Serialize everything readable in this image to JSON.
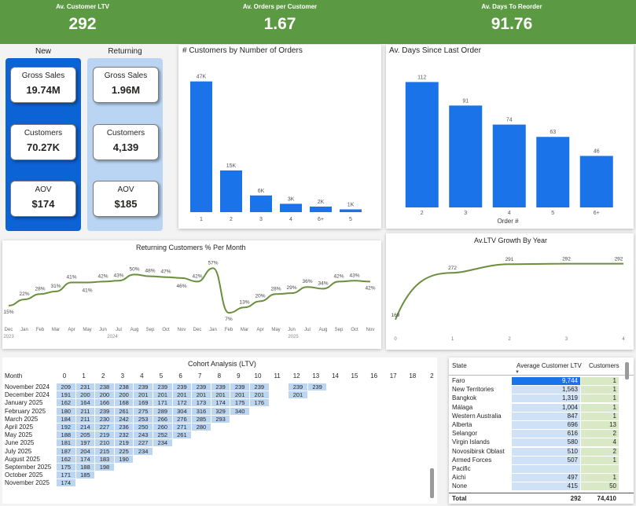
{
  "kpis": [
    {
      "label": "Av. Customer LTV",
      "value": "292"
    },
    {
      "label": "Av. Orders per Customer",
      "value": "1.67"
    },
    {
      "label": "Av. Days To Reorder",
      "value": "91.76"
    }
  ],
  "segments": {
    "new": {
      "header": "New",
      "gross_label": "Gross Sales",
      "gross": "19.74M",
      "cust_label": "Customers",
      "cust": "70.27K",
      "aov_label": "AOV",
      "aov": "$174"
    },
    "returning": {
      "header": "Returning",
      "gross_label": "Gross Sales",
      "gross": "1.96M",
      "cust_label": "Customers",
      "cust": "4,139",
      "aov_label": "AOV",
      "aov": "$185"
    }
  },
  "colors": {
    "green": "#5b9a42",
    "blue": "#1a73e8",
    "dark_blue": "#0b63d6",
    "light_blue": "#bcd6f2",
    "line_green": "#6b8e3d"
  },
  "chart_data": [
    {
      "type": "bar",
      "title": "# Customers by Number of Orders",
      "categories": [
        "1",
        "2",
        "3",
        "4",
        "6+",
        "5"
      ],
      "values": [
        47000,
        15000,
        6000,
        3000,
        2000,
        1000
      ],
      "data_labels": [
        "47K",
        "15K",
        "6K",
        "3K",
        "2K",
        "1K"
      ],
      "ylim": [
        0,
        50000
      ]
    },
    {
      "type": "bar",
      "title": "Av. Days Since Last Order",
      "xlabel": "Order #",
      "categories": [
        "2",
        "3",
        "4",
        "5",
        "6+"
      ],
      "values": [
        112,
        91,
        74,
        63,
        46
      ],
      "ylim": [
        0,
        120
      ]
    },
    {
      "type": "line",
      "title": "Returning Customers % Per Month",
      "x": [
        "Dec",
        "Jan",
        "Feb",
        "Mar",
        "Apr",
        "May",
        "Jun",
        "Jul",
        "Aug",
        "Sep",
        "Oct",
        "Nov",
        "Dec",
        "Jan",
        "Feb",
        "Mar",
        "Apr",
        "May",
        "Jun",
        "Jul",
        "Aug",
        "Sep",
        "Oct",
        "Nov"
      ],
      "values": [
        15,
        22,
        28,
        31,
        41,
        41,
        42,
        43,
        50,
        48,
        47,
        46,
        42,
        57,
        7,
        13,
        20,
        28,
        29,
        36,
        34,
        42,
        43,
        42
      ],
      "data_labels": [
        "15%",
        "22%",
        "28%",
        "31%",
        "41%",
        "41%",
        "42%",
        "43%",
        "50%",
        "48%",
        "47%",
        "46%",
        "42%",
        "57%",
        "7%",
        "13%",
        "20%",
        "28%",
        "29%",
        "36%",
        "34%",
        "42%",
        "43%",
        "42%"
      ],
      "year_labels": [
        "2023",
        "2024",
        "2025"
      ]
    },
    {
      "type": "line",
      "title": "Av.LTV Growth By Year",
      "x": [
        "0",
        "1",
        "2",
        "3",
        "4"
      ],
      "values": [
        169,
        272,
        291,
        292,
        292
      ],
      "data_labels": [
        "169",
        "272",
        "291",
        "292",
        "292"
      ]
    }
  ],
  "cohort": {
    "title": "Cohort Analysis (LTV)",
    "month_label": "Month",
    "columns": [
      "0",
      "1",
      "2",
      "3",
      "4",
      "5",
      "6",
      "7",
      "8",
      "9",
      "10",
      "11",
      "12",
      "13",
      "14",
      "15",
      "16",
      "17",
      "18",
      "2"
    ],
    "rows": [
      {
        "month": "November 2024",
        "values": [
          "209",
          "231",
          "238",
          "238",
          "239",
          "239",
          "239",
          "239",
          "239",
          "239",
          "239",
          "",
          "239",
          "239"
        ]
      },
      {
        "month": "December 2024",
        "values": [
          "191",
          "200",
          "200",
          "200",
          "201",
          "201",
          "201",
          "201",
          "201",
          "201",
          "201",
          "",
          "201"
        ]
      },
      {
        "month": "January 2025",
        "values": [
          "162",
          "164",
          "166",
          "168",
          "169",
          "171",
          "172",
          "173",
          "174",
          "175",
          "176"
        ]
      },
      {
        "month": "February 2025",
        "values": [
          "180",
          "211",
          "239",
          "261",
          "275",
          "289",
          "304",
          "316",
          "329",
          "340"
        ]
      },
      {
        "month": "March 2025",
        "values": [
          "184",
          "211",
          "230",
          "242",
          "253",
          "266",
          "276",
          "285",
          "293"
        ]
      },
      {
        "month": "April 2025",
        "values": [
          "192",
          "214",
          "227",
          "236",
          "250",
          "260",
          "271",
          "280"
        ]
      },
      {
        "month": "May 2025",
        "values": [
          "188",
          "205",
          "219",
          "232",
          "243",
          "252",
          "261"
        ]
      },
      {
        "month": "June 2025",
        "values": [
          "181",
          "197",
          "210",
          "219",
          "227",
          "234"
        ]
      },
      {
        "month": "July 2025",
        "values": [
          "187",
          "204",
          "215",
          "225",
          "234"
        ]
      },
      {
        "month": "August 2025",
        "values": [
          "162",
          "174",
          "183",
          "190"
        ]
      },
      {
        "month": "September 2025",
        "values": [
          "175",
          "188",
          "198"
        ]
      },
      {
        "month": "October 2025",
        "values": [
          "171",
          "185"
        ]
      },
      {
        "month": "November 2025",
        "values": [
          "174"
        ]
      }
    ]
  },
  "state_table": {
    "headers": {
      "state": "State",
      "ltv": "Average Customer LTV",
      "cust": "Customers"
    },
    "rows": [
      {
        "state": "Faro",
        "ltv": "9,744",
        "cust": "1"
      },
      {
        "state": "New Territories",
        "ltv": "1,563",
        "cust": "1"
      },
      {
        "state": "Bangkok",
        "ltv": "1,319",
        "cust": "1"
      },
      {
        "state": "Málaga",
        "ltv": "1,004",
        "cust": "1"
      },
      {
        "state": "Western Australia",
        "ltv": "847",
        "cust": "1"
      },
      {
        "state": "Alberta",
        "ltv": "696",
        "cust": "13"
      },
      {
        "state": "Selangor",
        "ltv": "616",
        "cust": "2"
      },
      {
        "state": "Virgin Islands",
        "ltv": "580",
        "cust": "4"
      },
      {
        "state": "Novosibirsk Oblast",
        "ltv": "510",
        "cust": "2"
      },
      {
        "state": "Armed Forces",
        "ltv": "507",
        "cust": "1"
      },
      {
        "state": "Pacific",
        "ltv": "",
        "cust": ""
      },
      {
        "state": "Aichi",
        "ltv": "497",
        "cust": "1"
      },
      {
        "state": "None",
        "ltv": "415",
        "cust": "50"
      }
    ],
    "total": {
      "label": "Total",
      "ltv": "292",
      "cust": "74,410"
    }
  }
}
